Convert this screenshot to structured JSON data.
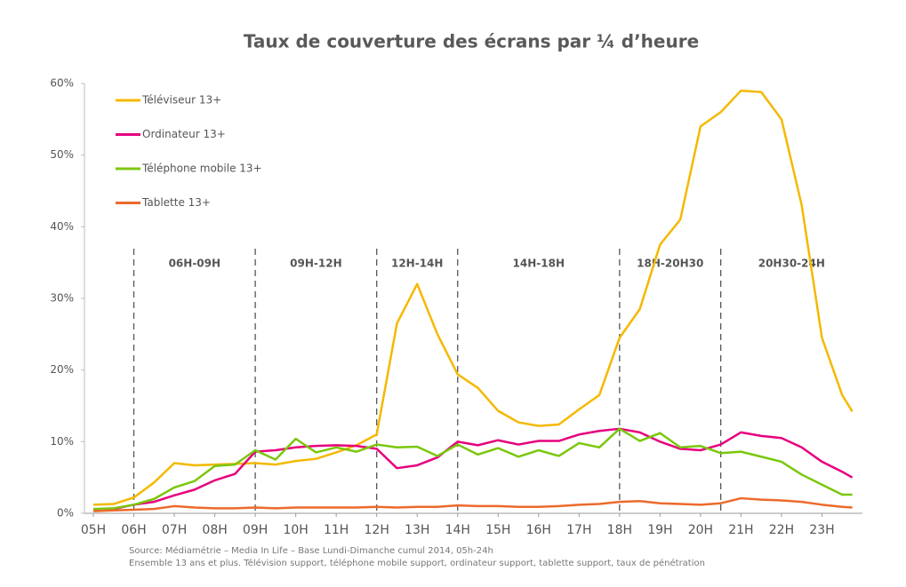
{
  "chart_data": {
    "type": "line",
    "title": "Taux de couverture des écrans par ¼ d’heure",
    "x": [
      5,
      5.5,
      6,
      6.5,
      7,
      7.5,
      8,
      8.5,
      9,
      9.5,
      10,
      10.5,
      11,
      11.5,
      12,
      12.5,
      13,
      13.5,
      14,
      14.5,
      15,
      15.5,
      16,
      16.5,
      17,
      17.5,
      18,
      18.5,
      19,
      19.5,
      20,
      20.5,
      21,
      21.5,
      22,
      22.5,
      23,
      23.5,
      23.75
    ],
    "series": [
      {
        "name": "Téléviseur 13+",
        "color": "#f5b800",
        "values": [
          1.2,
          1.3,
          2.2,
          4.3,
          7.0,
          6.7,
          6.8,
          6.9,
          7.0,
          6.8,
          7.3,
          7.6,
          8.5,
          9.5,
          11.0,
          26.5,
          32,
          25,
          19.4,
          17.5,
          14.3,
          12.7,
          12.2,
          12.4,
          14.5,
          16.5,
          24.5,
          28.5,
          37.5,
          41,
          54,
          56,
          59,
          58.8,
          55,
          43,
          24.5,
          16.5,
          14.2
        ]
      },
      {
        "name": "Ordinateur 13+",
        "color": "#e6007e",
        "values": [
          0.4,
          0.6,
          1.2,
          1.6,
          2.5,
          3.3,
          4.6,
          5.5,
          8.6,
          8.8,
          9.2,
          9.4,
          9.5,
          9.4,
          9.0,
          6.3,
          6.7,
          7.8,
          10.0,
          9.5,
          10.2,
          9.6,
          10.1,
          10.1,
          11.0,
          11.5,
          11.8,
          11.3,
          10.0,
          9.0,
          8.8,
          9.6,
          11.3,
          10.8,
          10.5,
          9.2,
          7.2,
          5.8,
          5.0
        ]
      },
      {
        "name": "Téléphone mobile 13+",
        "color": "#7ac70c",
        "values": [
          0.6,
          0.7,
          1.2,
          2.0,
          3.6,
          4.5,
          6.6,
          6.8,
          8.8,
          7.5,
          10.4,
          8.5,
          9.2,
          8.6,
          9.6,
          9.2,
          9.3,
          8.0,
          9.6,
          8.2,
          9.1,
          7.9,
          8.8,
          8.0,
          9.8,
          9.2,
          11.8,
          10.1,
          11.2,
          9.2,
          9.4,
          8.4,
          8.6,
          7.9,
          7.2,
          5.4,
          4.0,
          2.6,
          2.6
        ]
      },
      {
        "name": "Tablette 13+",
        "color": "#ec6a2c",
        "values": [
          0.3,
          0.4,
          0.5,
          0.6,
          1.0,
          0.8,
          0.7,
          0.7,
          0.8,
          0.7,
          0.8,
          0.8,
          0.8,
          0.8,
          0.9,
          0.8,
          0.9,
          0.9,
          1.1,
          1.0,
          1.0,
          0.9,
          0.9,
          1.0,
          1.2,
          1.3,
          1.6,
          1.7,
          1.4,
          1.3,
          1.2,
          1.4,
          2.1,
          1.9,
          1.8,
          1.6,
          1.2,
          0.9,
          0.8
        ]
      }
    ],
    "xlim": [
      5,
      24
    ],
    "ylim": [
      0,
      60
    ],
    "xticks": [
      {
        "value": 5,
        "label": "05H"
      },
      {
        "value": 6,
        "label": "06H"
      },
      {
        "value": 7,
        "label": "07H"
      },
      {
        "value": 8,
        "label": "08H"
      },
      {
        "value": 9,
        "label": "09H"
      },
      {
        "value": 10,
        "label": "10H"
      },
      {
        "value": 11,
        "label": "11H"
      },
      {
        "value": 12,
        "label": "12H"
      },
      {
        "value": 13,
        "label": "13H"
      },
      {
        "value": 14,
        "label": "14H"
      },
      {
        "value": 15,
        "label": "15H"
      },
      {
        "value": 16,
        "label": "16H"
      },
      {
        "value": 17,
        "label": "17H"
      },
      {
        "value": 18,
        "label": "18H"
      },
      {
        "value": 19,
        "label": "19H"
      },
      {
        "value": 20,
        "label": "20H"
      },
      {
        "value": 21,
        "label": "21H"
      },
      {
        "value": 22,
        "label": "22H"
      },
      {
        "value": 23,
        "label": "23H"
      }
    ],
    "yticks": [
      {
        "value": 0,
        "label": "0%"
      },
      {
        "value": 10,
        "label": "10%"
      },
      {
        "value": 20,
        "label": "20%"
      },
      {
        "value": 30,
        "label": "30%"
      },
      {
        "value": 40,
        "label": "40%"
      },
      {
        "value": 50,
        "label": "50%"
      },
      {
        "value": 60,
        "label": "60%"
      }
    ],
    "periods": [
      {
        "label": "06H-09H",
        "start": 6,
        "end": 9
      },
      {
        "label": "09H-12H",
        "start": 9,
        "end": 12
      },
      {
        "label": "12H-14H",
        "start": 12,
        "end": 14
      },
      {
        "label": "14H-18H",
        "start": 14,
        "end": 18
      },
      {
        "label": "18H-20H30",
        "start": 18,
        "end": 20.5
      },
      {
        "label": "20H30-24H",
        "start": 20.5,
        "end": 24
      }
    ],
    "source": [
      "Source: Médiamétrie – Media In Life – Base Lundi-Dimanche cumul 2014, 05h-24h",
      "Ensemble 13 ans et plus. Télévision support, téléphone mobile support, ordinateur support, tablette support, taux de pénétration"
    ]
  }
}
